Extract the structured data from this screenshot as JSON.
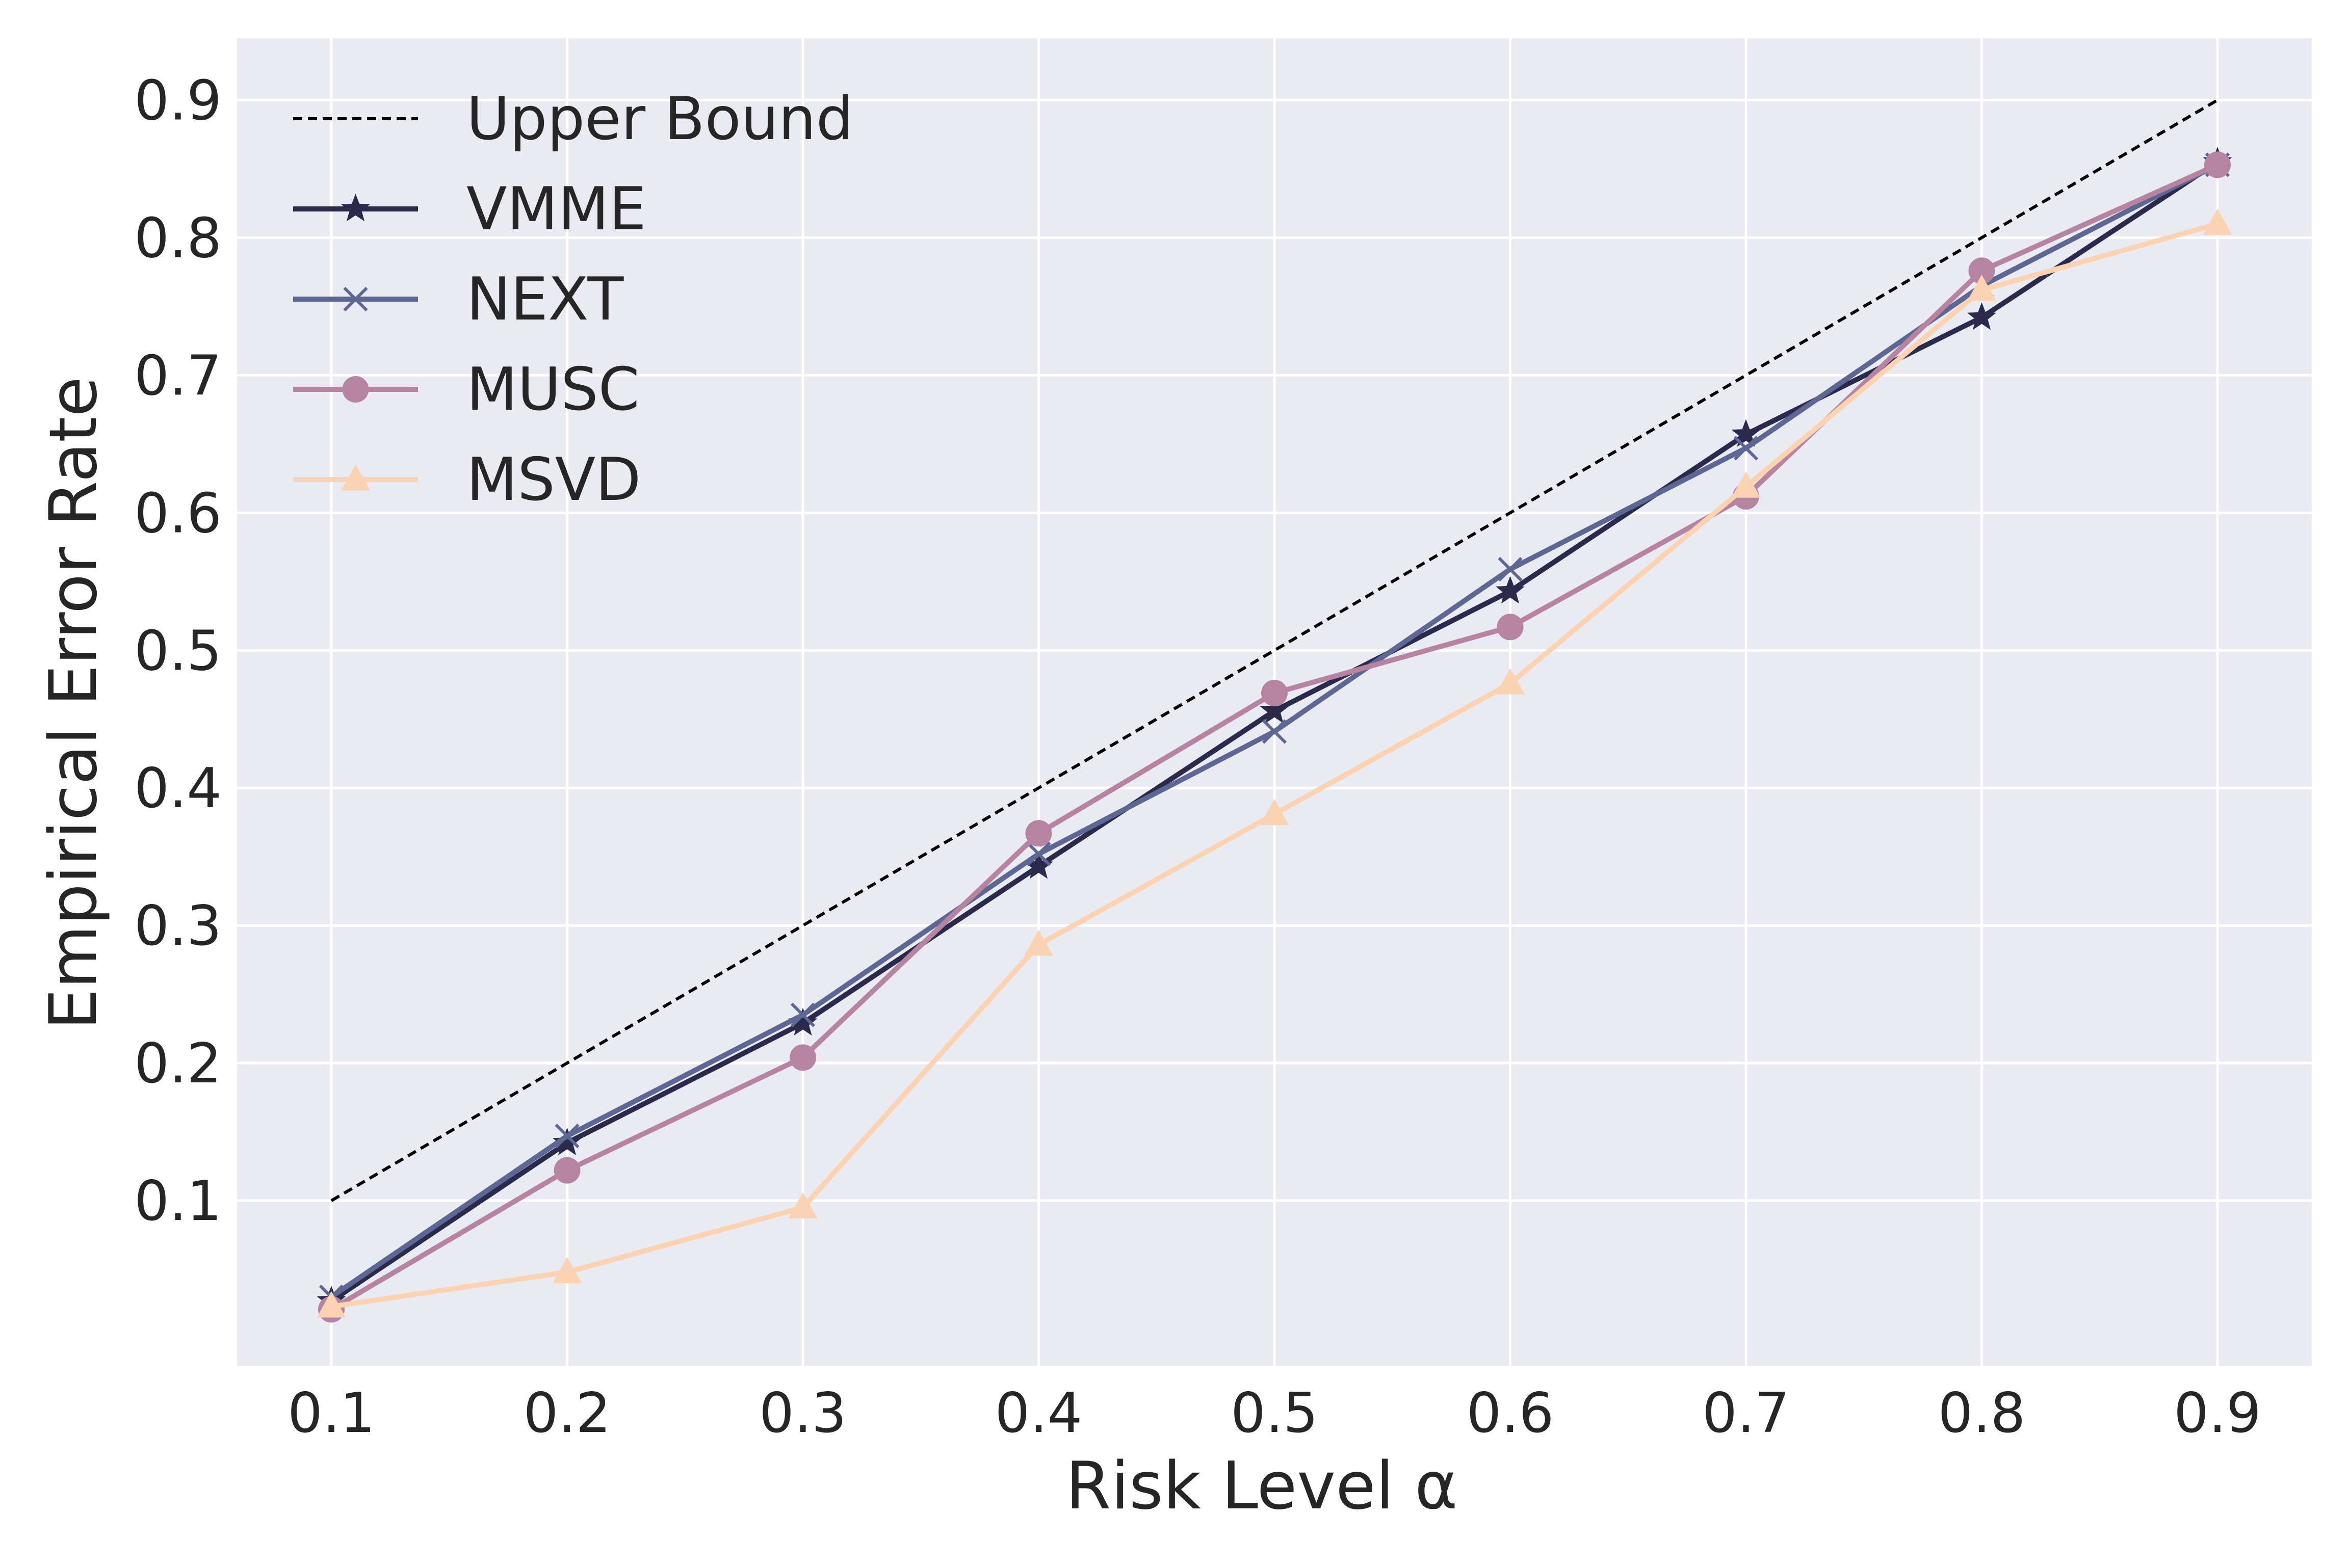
{
  "chart_data": {
    "type": "line",
    "title": "",
    "xlabel": "Risk Level α",
    "ylabel": "Empirical Error Rate",
    "x": [
      0.1,
      0.2,
      0.3,
      0.4,
      0.5,
      0.6,
      0.7,
      0.8,
      0.9
    ],
    "xlim": [
      0.06,
      0.94
    ],
    "ylim": [
      -0.02,
      0.945
    ],
    "xticks": [
      0.1,
      0.2,
      0.3,
      0.4,
      0.5,
      0.6,
      0.7,
      0.8,
      0.9
    ],
    "xtick_labels": [
      "0.1",
      "0.2",
      "0.3",
      "0.4",
      "0.5",
      "0.6",
      "0.7",
      "0.8",
      "0.9"
    ],
    "yticks": [
      0.1,
      0.2,
      0.3,
      0.4,
      0.5,
      0.6,
      0.7,
      0.8,
      0.9
    ],
    "ytick_labels": [
      "0.1",
      "0.2",
      "0.3",
      "0.4",
      "0.5",
      "0.6",
      "0.7",
      "0.8",
      "0.9"
    ],
    "grid": true,
    "legend_position": "top-left",
    "series": [
      {
        "name": "Upper Bound",
        "color": "#000000",
        "style": "dashed",
        "marker": "none",
        "values": [
          0.1,
          0.2,
          0.3,
          0.4,
          0.5,
          0.6,
          0.7,
          0.8,
          0.9
        ]
      },
      {
        "name": "VMME",
        "color": "#2b2a4c",
        "style": "solid",
        "marker": "star",
        "values": [
          0.027,
          0.142,
          0.229,
          0.343,
          0.456,
          0.543,
          0.657,
          0.742,
          0.855
        ]
      },
      {
        "name": "NEXT",
        "color": "#5c6794",
        "style": "solid",
        "marker": "x",
        "values": [
          0.03,
          0.147,
          0.235,
          0.352,
          0.441,
          0.559,
          0.647,
          0.765,
          0.853
        ]
      },
      {
        "name": "MUSC",
        "color": "#b684a1",
        "style": "solid",
        "marker": "circle",
        "values": [
          0.021,
          0.122,
          0.204,
          0.367,
          0.469,
          0.517,
          0.612,
          0.776,
          0.853
        ]
      },
      {
        "name": "MSVD",
        "color": "#fbd3b2",
        "style": "solid",
        "marker": "triangle",
        "values": [
          0.023,
          0.048,
          0.095,
          0.286,
          0.381,
          0.476,
          0.619,
          0.762,
          0.81
        ]
      }
    ]
  }
}
